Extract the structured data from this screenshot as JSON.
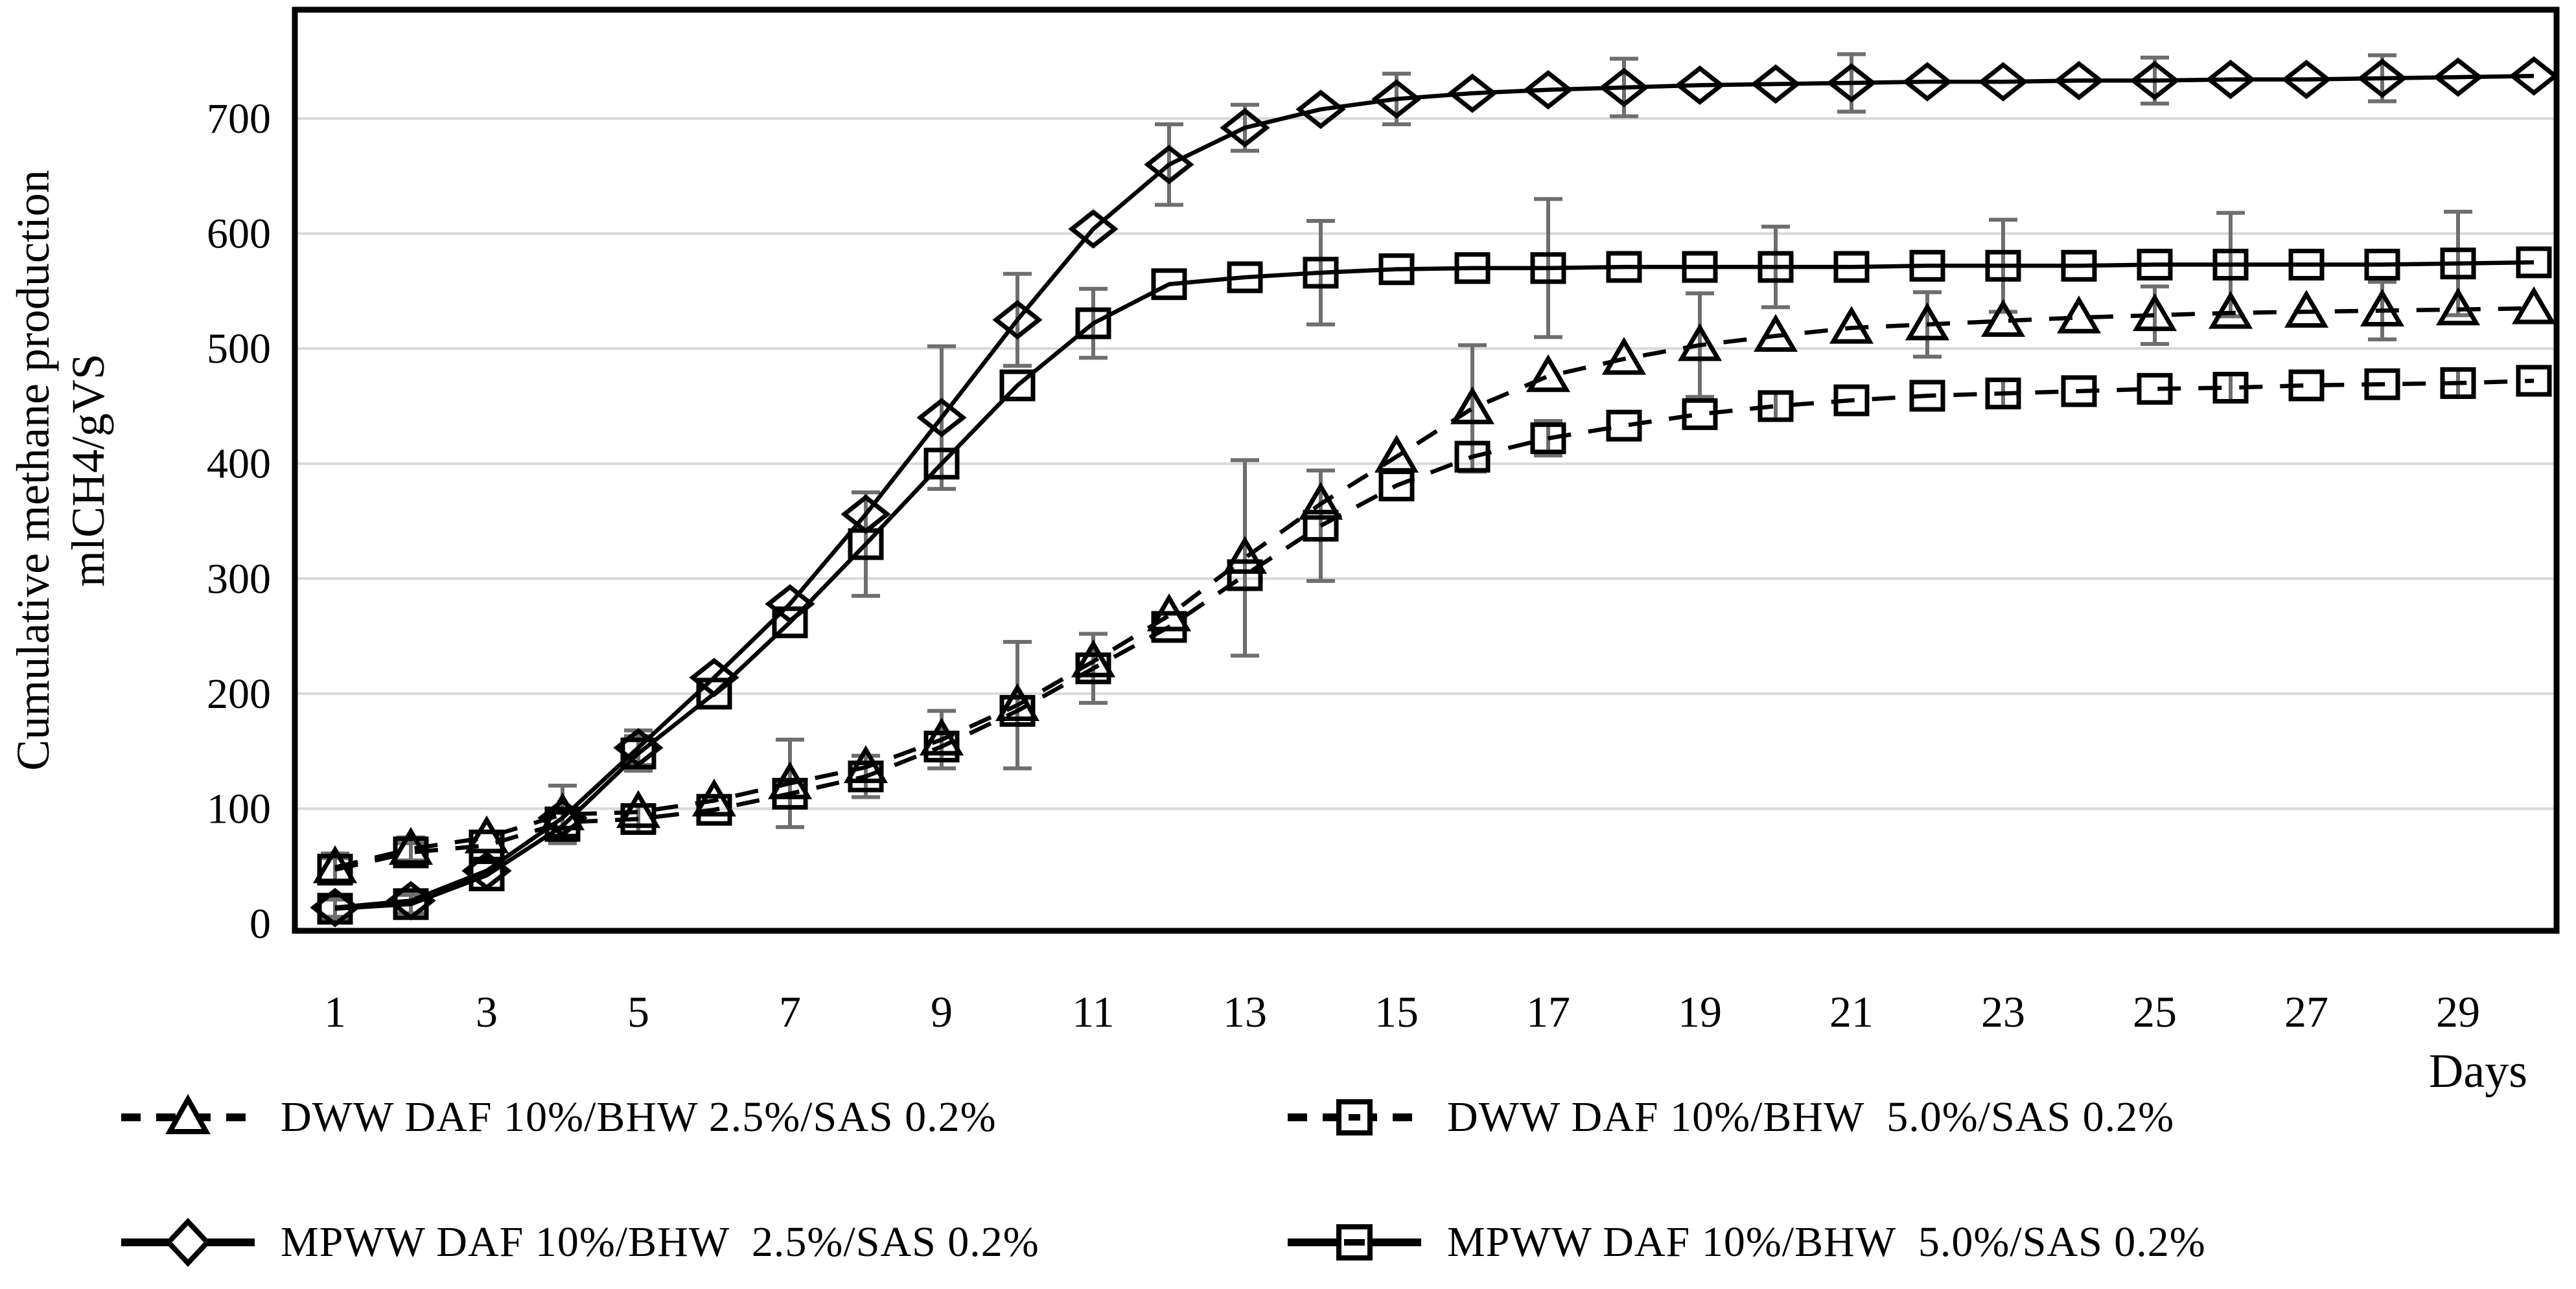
{
  "figure": {
    "background": "#ffffff",
    "frame_color": "#000000",
    "gridline_color": "#d9d9d9",
    "error_bar_color": "#6e6e6e",
    "series_color": "#000000"
  },
  "y_axis": {
    "title_line1": "Cumulative methane production",
    "title_line2": "mlCH4/gVS",
    "tick_labels": [
      0,
      100,
      200,
      300,
      400,
      500,
      600,
      700
    ],
    "max_value": 794
  },
  "x_axis": {
    "label": "Days",
    "tick_labels": [
      1,
      3,
      5,
      7,
      9,
      11,
      13,
      15,
      17,
      19,
      21,
      23,
      25,
      27,
      29
    ]
  },
  "chart_data": {
    "type": "line",
    "x": [
      1,
      2,
      3,
      4,
      5,
      6,
      7,
      8,
      9,
      10,
      11,
      12,
      13,
      14,
      15,
      16,
      17,
      18,
      19,
      20,
      21,
      22,
      23,
      24,
      25,
      26,
      27,
      28,
      29,
      30
    ],
    "xlabel": "Days",
    "ylabel": "Cumulative methane production mlCH4/gVS",
    "ylim": [
      0,
      794
    ],
    "grid": true,
    "legend_position": "bottom",
    "series": [
      {
        "name": "DWW DAF 10%/BHW 2.5%/SAS 0.2%",
        "line": "dashed",
        "marker": "triangle",
        "values": [
          49,
          65,
          75,
          95,
          97,
          107,
          122,
          136,
          160,
          190,
          228,
          268,
          318,
          365,
          406,
          448,
          476,
          491,
          503,
          511,
          518,
          521,
          524,
          527,
          529,
          531,
          532,
          533,
          534,
          535
        ],
        "errors": [
          12,
          10,
          0,
          25,
          0,
          0,
          38,
          0,
          25,
          55,
          0,
          0,
          85,
          0,
          0,
          55,
          0,
          0,
          45,
          0,
          0,
          28,
          0,
          0,
          25,
          0,
          0,
          25,
          0,
          0
        ]
      },
      {
        "name": "DWW DAF 10%/BHW  5.0%/SAS 0.2%",
        "line": "dashed",
        "marker": "square",
        "values": [
          47,
          62,
          68,
          88,
          91,
          99,
          113,
          128,
          154,
          185,
          222,
          258,
          303,
          346,
          381,
          406,
          422,
          433,
          443,
          450,
          455,
          459,
          461,
          463,
          465,
          466,
          468,
          469,
          470,
          472
        ],
        "errors": [
          10,
          8,
          0,
          0,
          12,
          0,
          0,
          18,
          0,
          0,
          30,
          0,
          0,
          48,
          0,
          0,
          15,
          0,
          0,
          12,
          0,
          0,
          12,
          0,
          0,
          12,
          0,
          0,
          12,
          0
        ]
      },
      {
        "name": "MPWW DAF 10%/BHW  2.5%/SAS 0.2%",
        "line": "solid",
        "marker": "diamond",
        "values": [
          14,
          20,
          46,
          92,
          153,
          214,
          278,
          356,
          440,
          525,
          604,
          660,
          692,
          708,
          717,
          722,
          725,
          727,
          729,
          730,
          731,
          732,
          732,
          733,
          733,
          734,
          734,
          735,
          736,
          737
        ],
        "errors": [
          8,
          0,
          0,
          0,
          15,
          0,
          0,
          0,
          62,
          40,
          0,
          35,
          20,
          0,
          22,
          0,
          0,
          25,
          0,
          0,
          25,
          0,
          0,
          0,
          20,
          0,
          0,
          20,
          0,
          0
        ]
      },
      {
        "name": "MPWW DAF 10%/BHW  5.0%/SAS 0.2%",
        "line": "solid",
        "marker": "square",
        "values": [
          13,
          17,
          42,
          85,
          148,
          200,
          262,
          330,
          400,
          468,
          522,
          556,
          562,
          566,
          569,
          570,
          570,
          571,
          571,
          571,
          571,
          572,
          572,
          572,
          573,
          573,
          573,
          573,
          574,
          575
        ],
        "errors": [
          8,
          8,
          0,
          0,
          15,
          0,
          0,
          45,
          0,
          0,
          30,
          0,
          0,
          45,
          0,
          0,
          60,
          0,
          0,
          35,
          0,
          0,
          40,
          0,
          0,
          45,
          0,
          0,
          45,
          0
        ]
      }
    ]
  }
}
